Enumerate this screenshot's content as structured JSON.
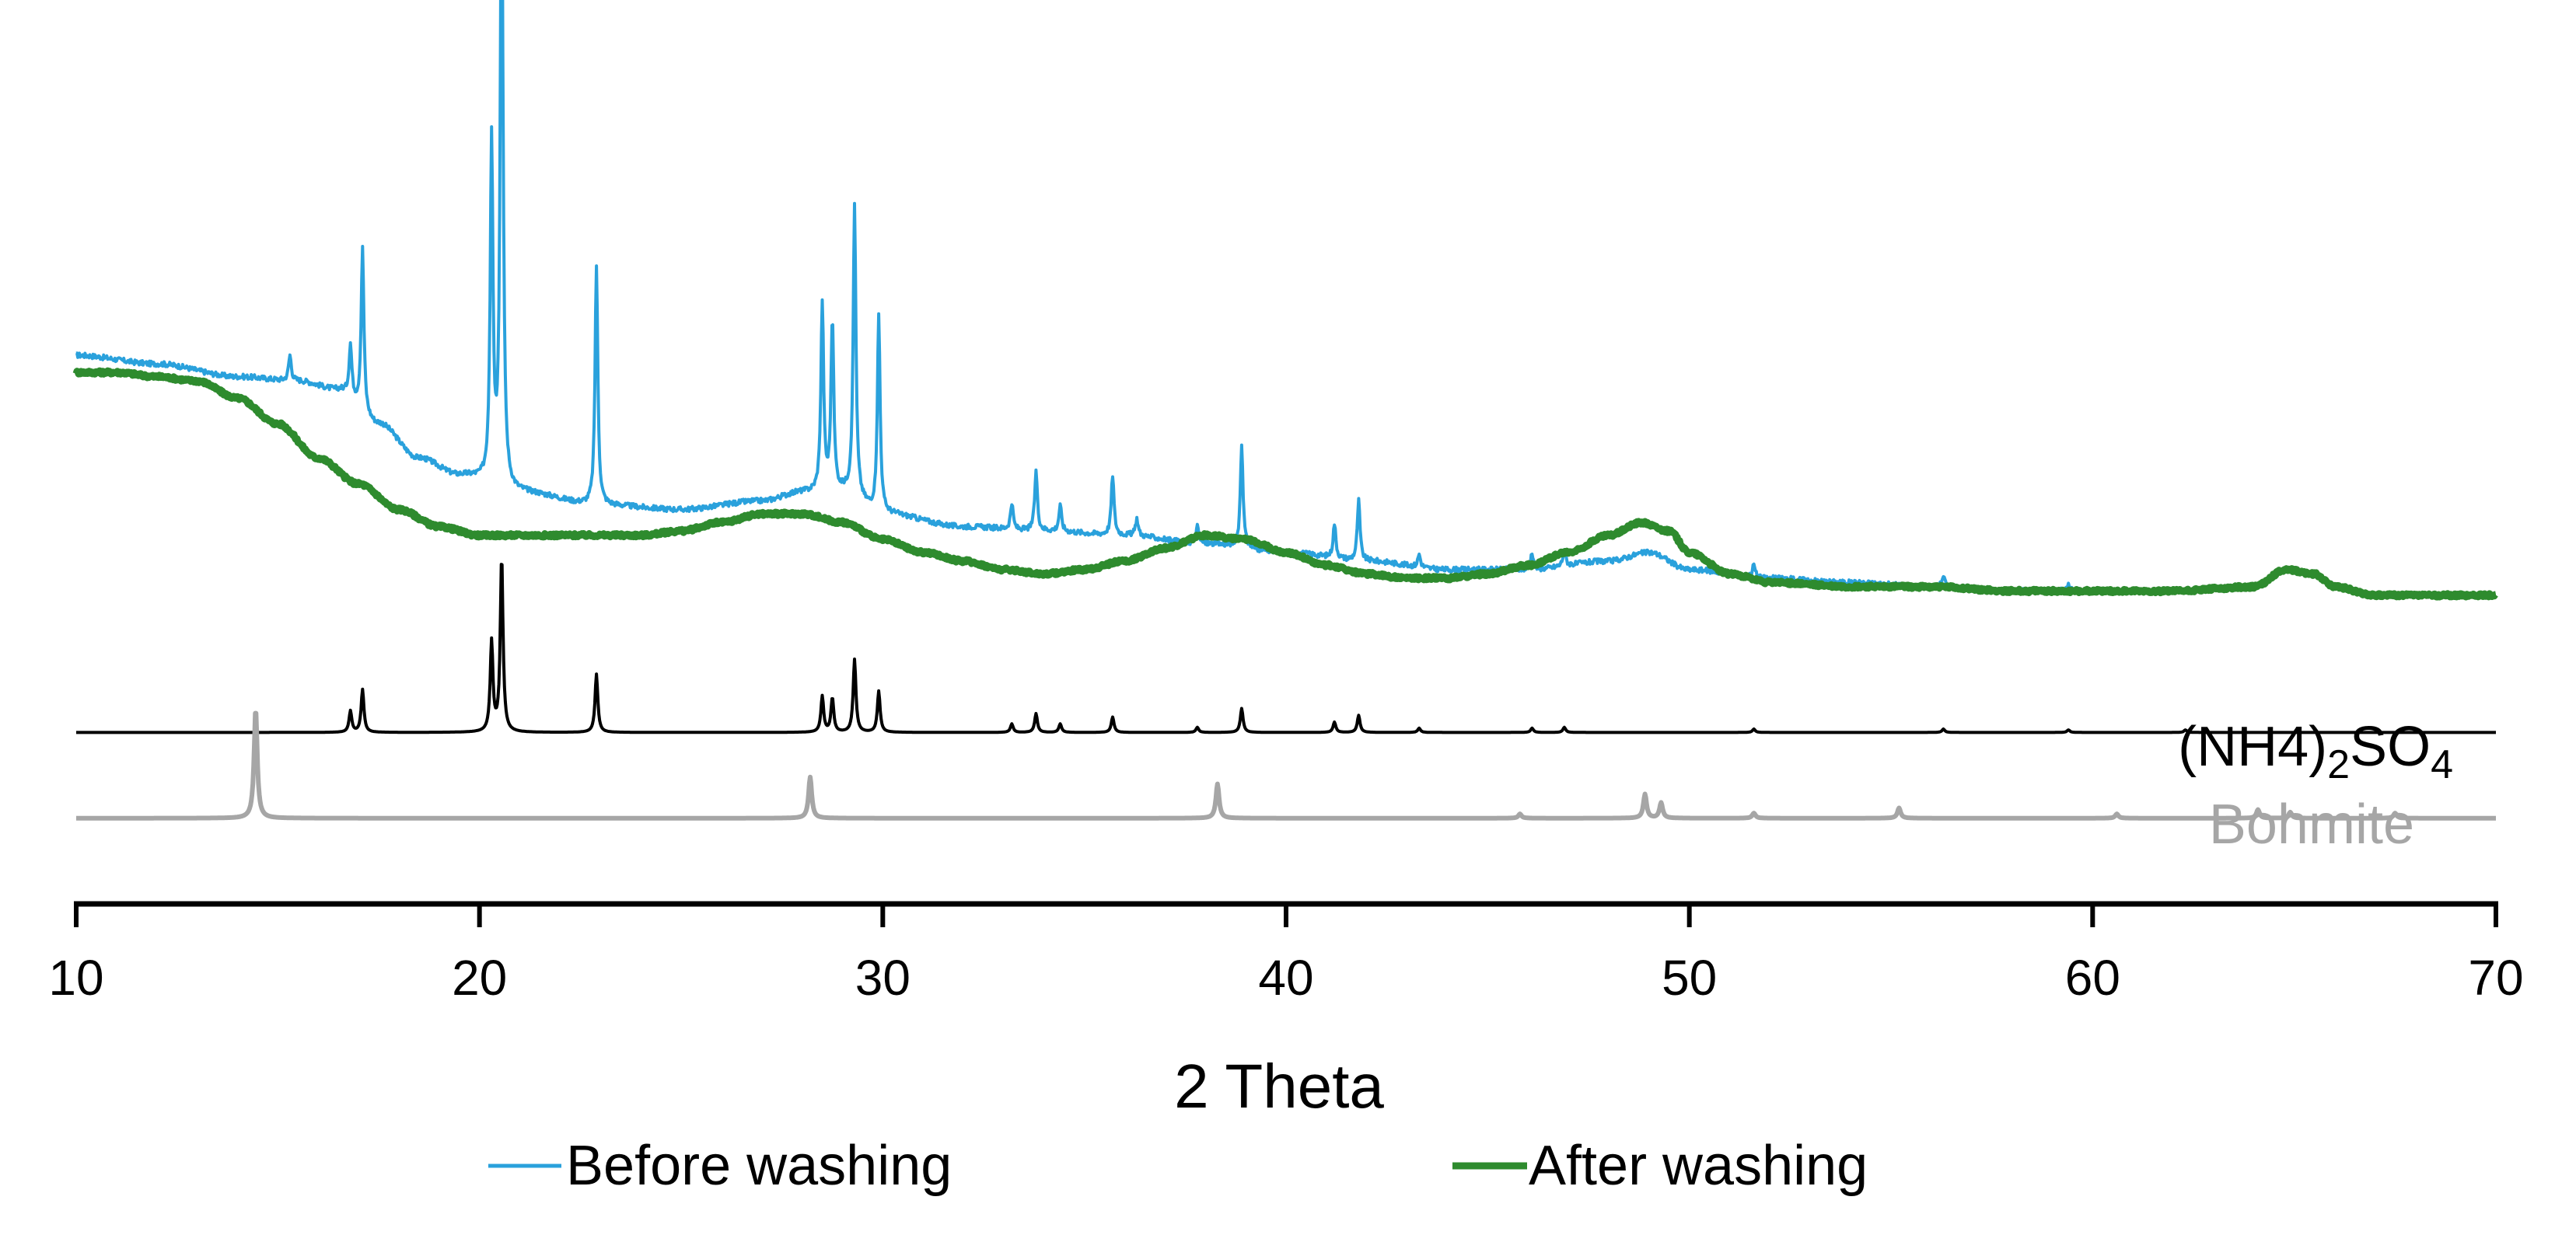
{
  "chart_data": {
    "type": "line",
    "title": "",
    "xlabel": "2 Theta",
    "ylabel": "",
    "xlim": [
      10,
      70
    ],
    "x_ticks": [
      "10",
      "20",
      "30",
      "40",
      "50",
      "60",
      "70"
    ],
    "grid": false,
    "legend_position": "bottom",
    "legend": [
      {
        "label": "Before washing",
        "color": "#2aa1dc"
      },
      {
        "label": "After washing",
        "color": "#2e8b2e"
      }
    ],
    "annotations": [
      {
        "text_main": "(NH4)",
        "sub1": "2",
        "text_mid": "SO",
        "sub2": "4",
        "color": "#000000",
        "series": "(NH4)2SO4 reference"
      },
      {
        "text": "Bohmite",
        "color": "#a6a6a6",
        "series": "Bohmite reference"
      }
    ],
    "series": [
      {
        "name": "Before washing",
        "color": "#2aa1dc",
        "baseline": [
          [
            10,
            0.64
          ],
          [
            12,
            0.63
          ],
          [
            14,
            0.615
          ],
          [
            15.5,
            0.61
          ],
          [
            16.5,
            0.6
          ],
          [
            17.5,
            0.56
          ],
          [
            18.5,
            0.52
          ],
          [
            19.5,
            0.5
          ],
          [
            21,
            0.48
          ],
          [
            23,
            0.465
          ],
          [
            25,
            0.46
          ],
          [
            27,
            0.47
          ],
          [
            28,
            0.48
          ],
          [
            29,
            0.48
          ],
          [
            30,
            0.455
          ],
          [
            32,
            0.44
          ],
          [
            34,
            0.435
          ],
          [
            36,
            0.43
          ],
          [
            38,
            0.42
          ],
          [
            40,
            0.41
          ],
          [
            42,
            0.4
          ],
          [
            44,
            0.39
          ],
          [
            46,
            0.39
          ],
          [
            48,
            0.4
          ],
          [
            49,
            0.41
          ],
          [
            50,
            0.39
          ],
          [
            52,
            0.38
          ],
          [
            54,
            0.375
          ],
          [
            56,
            0.37
          ],
          [
            58,
            0.365
          ],
          [
            60,
            0.365
          ]
        ],
        "peaks": [
          [
            15.3,
            0.03
          ],
          [
            16.8,
            0.06
          ],
          [
            17.1,
            0.19
          ],
          [
            20.3,
            0.4
          ],
          [
            20.55,
            0.77
          ],
          [
            22.9,
            0.28
          ],
          [
            28.5,
            0.22
          ],
          [
            28.75,
            0.2
          ],
          [
            29.3,
            0.34
          ],
          [
            29.9,
            0.23
          ],
          [
            33.2,
            0.03
          ],
          [
            33.8,
            0.07
          ],
          [
            34.4,
            0.03
          ],
          [
            35.7,
            0.07
          ],
          [
            36.3,
            0.02
          ],
          [
            37.8,
            0.02
          ],
          [
            38.9,
            0.12
          ],
          [
            41.2,
            0.04
          ],
          [
            41.8,
            0.07
          ],
          [
            43.3,
            0.015
          ],
          [
            46.1,
            0.02
          ],
          [
            46.9,
            0.02
          ],
          [
            51.6,
            0.015
          ],
          [
            56.3,
            0.015
          ],
          [
            59.4,
            0.01
          ]
        ]
      },
      {
        "name": "After washing",
        "color": "#2e8b2e",
        "baseline": [
          [
            10,
            0.62
          ],
          [
            11,
            0.62
          ],
          [
            12,
            0.615
          ],
          [
            13,
            0.61
          ],
          [
            14,
            0.59
          ],
          [
            15,
            0.56
          ],
          [
            16,
            0.52
          ],
          [
            17,
            0.49
          ],
          [
            18,
            0.46
          ],
          [
            19,
            0.44
          ],
          [
            20,
            0.43
          ],
          [
            21,
            0.43
          ],
          [
            22,
            0.43
          ],
          [
            23,
            0.43
          ],
          [
            24,
            0.43
          ],
          [
            25,
            0.435
          ],
          [
            26,
            0.445
          ],
          [
            27,
            0.455
          ],
          [
            28,
            0.455
          ],
          [
            29,
            0.445
          ],
          [
            30,
            0.425
          ],
          [
            31,
            0.41
          ],
          [
            32,
            0.4
          ],
          [
            33,
            0.39
          ],
          [
            34,
            0.385
          ],
          [
            35,
            0.39
          ],
          [
            36,
            0.4
          ],
          [
            37,
            0.415
          ],
          [
            38,
            0.43
          ],
          [
            39,
            0.425
          ],
          [
            40,
            0.41
          ],
          [
            41,
            0.395
          ],
          [
            42,
            0.385
          ],
          [
            43,
            0.38
          ],
          [
            44,
            0.38
          ],
          [
            45,
            0.385
          ],
          [
            46,
            0.395
          ],
          [
            47,
            0.41
          ],
          [
            48,
            0.43
          ],
          [
            48.8,
            0.445
          ],
          [
            49.5,
            0.435
          ],
          [
            50,
            0.41
          ],
          [
            51,
            0.385
          ],
          [
            52,
            0.375
          ],
          [
            54,
            0.37
          ],
          [
            56,
            0.37
          ],
          [
            58,
            0.365
          ],
          [
            60,
            0.365
          ],
          [
            62,
            0.365
          ],
          [
            64,
            0.37
          ],
          [
            64.8,
            0.39
          ],
          [
            65.5,
            0.385
          ],
          [
            66,
            0.37
          ],
          [
            67,
            0.36
          ],
          [
            68,
            0.36
          ],
          [
            70,
            0.36
          ]
        ],
        "peaks": []
      },
      {
        "name": "(NH4)2SO4 reference",
        "color": "#000000",
        "baseline": [
          [
            10,
            0.2
          ],
          [
            70,
            0.2
          ]
        ],
        "peaks": [
          [
            16.8,
            0.025
          ],
          [
            17.1,
            0.05
          ],
          [
            20.3,
            0.105
          ],
          [
            20.55,
            0.205
          ],
          [
            22.9,
            0.068
          ],
          [
            28.5,
            0.042
          ],
          [
            28.75,
            0.04
          ],
          [
            29.3,
            0.085
          ],
          [
            29.9,
            0.048
          ],
          [
            33.2,
            0.01
          ],
          [
            33.8,
            0.022
          ],
          [
            34.4,
            0.01
          ],
          [
            35.7,
            0.018
          ],
          [
            37.8,
            0.006
          ],
          [
            38.9,
            0.028
          ],
          [
            41.2,
            0.012
          ],
          [
            41.8,
            0.02
          ],
          [
            43.3,
            0.005
          ],
          [
            46.1,
            0.005
          ],
          [
            46.9,
            0.006
          ],
          [
            51.6,
            0.004
          ],
          [
            56.3,
            0.004
          ],
          [
            59.4,
            0.003
          ],
          [
            62.3,
            0.003
          ]
        ]
      },
      {
        "name": "Bohmite reference",
        "color": "#a6a6a6",
        "baseline": [
          [
            10,
            0.1
          ],
          [
            70,
            0.1
          ]
        ],
        "peaks": [
          [
            14.45,
            0.128
          ],
          [
            28.2,
            0.048
          ],
          [
            38.3,
            0.04
          ],
          [
            45.8,
            0.005
          ],
          [
            48.9,
            0.028
          ],
          [
            49.3,
            0.018
          ],
          [
            51.6,
            0.006
          ],
          [
            55.2,
            0.012
          ],
          [
            60.6,
            0.005
          ],
          [
            64.1,
            0.01
          ],
          [
            64.9,
            0.007
          ],
          [
            67.5,
            0.006
          ]
        ]
      }
    ]
  }
}
